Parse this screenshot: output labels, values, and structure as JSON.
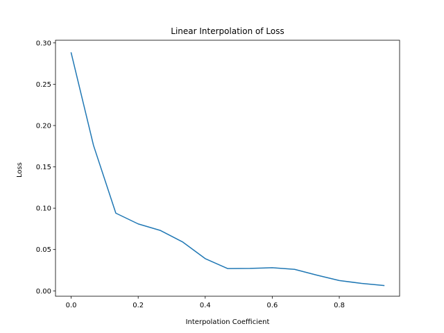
{
  "chart_data": {
    "type": "line",
    "title": "Linear Interpolation of Loss",
    "xlabel": "Interpolation Coefficient",
    "ylabel": "Loss",
    "xlim": [
      -0.0467,
      0.98
    ],
    "ylim": [
      -0.0065,
      0.3032
    ],
    "xticks": [
      0.0,
      0.2,
      0.4,
      0.6,
      0.8
    ],
    "xtick_labels": [
      "0.0",
      "0.2",
      "0.4",
      "0.6",
      "0.8"
    ],
    "yticks": [
      0.0,
      0.05,
      0.1,
      0.15,
      0.2,
      0.25,
      0.3
    ],
    "ytick_labels": [
      "0.00",
      "0.05",
      "0.10",
      "0.15",
      "0.20",
      "0.25",
      "0.30"
    ],
    "grid": false,
    "series": [
      {
        "color": "#1f77b4",
        "x": [
          0.0,
          0.0667,
          0.1333,
          0.2,
          0.2667,
          0.3333,
          0.4,
          0.4667,
          0.5333,
          0.6,
          0.6667,
          0.7333,
          0.8,
          0.8667,
          0.9333
        ],
        "y": [
          0.288,
          0.176,
          0.094,
          0.081,
          0.073,
          0.059,
          0.039,
          0.027,
          0.0272,
          0.028,
          0.026,
          0.019,
          0.0125,
          0.009,
          0.0065
        ]
      }
    ]
  }
}
